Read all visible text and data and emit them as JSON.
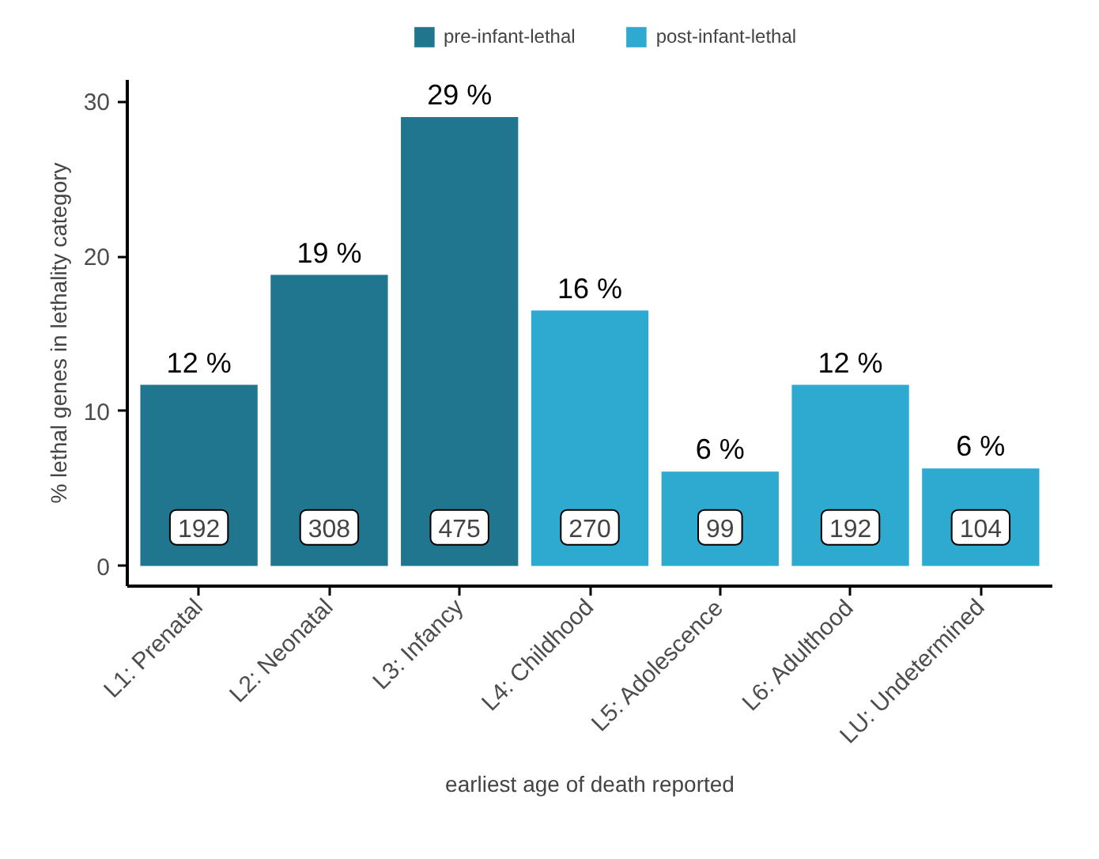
{
  "chart_data": {
    "type": "bar",
    "xlabel": "earliest age of death reported",
    "ylabel": "% lethal genes in lethality category",
    "categories": [
      "L1: Prenatal",
      "L2: Neonatal",
      "L3: Infancy",
      "L4: Childhood",
      "L5: Adolescence",
      "L6: Adulthood",
      "LU: Undetermined"
    ],
    "series": [
      {
        "name": "pre-infant-lethal",
        "color": "#20768f",
        "values": [
          11.7,
          18.8,
          29.0,
          null,
          null,
          null,
          null
        ],
        "value_labels": [
          "12 %",
          "19 %",
          "29 %",
          null,
          null,
          null,
          null
        ]
      },
      {
        "name": "post-infant-lethal",
        "color": "#2eaad1",
        "values": [
          null,
          null,
          null,
          16.5,
          6.1,
          11.7,
          6.3
        ],
        "value_labels": [
          null,
          null,
          null,
          "16 %",
          "6 %",
          "12 %",
          "6 %"
        ]
      }
    ],
    "ylim": [
      -1.3,
      31.4
    ],
    "yticks": [
      0,
      10,
      20,
      30
    ],
    "grid": false,
    "legend": "top",
    "annotations": [
      {
        "text": "192",
        "x": "L1: Prenatal",
        "y": 2.5
      },
      {
        "text": "308",
        "x": "L2: Neonatal",
        "y": 2.5
      },
      {
        "text": "475",
        "x": "L3: Infancy",
        "y": 2.5
      },
      {
        "text": "270",
        "x": "L4: Childhood",
        "y": 2.5
      },
      {
        "text": "99",
        "x": "L5: Adolescence",
        "y": 2.5
      },
      {
        "text": "192",
        "x": "L6: Adulthood",
        "y": 2.5
      },
      {
        "text": "104",
        "x": "LU: Undetermined",
        "y": 2.5
      }
    ]
  }
}
